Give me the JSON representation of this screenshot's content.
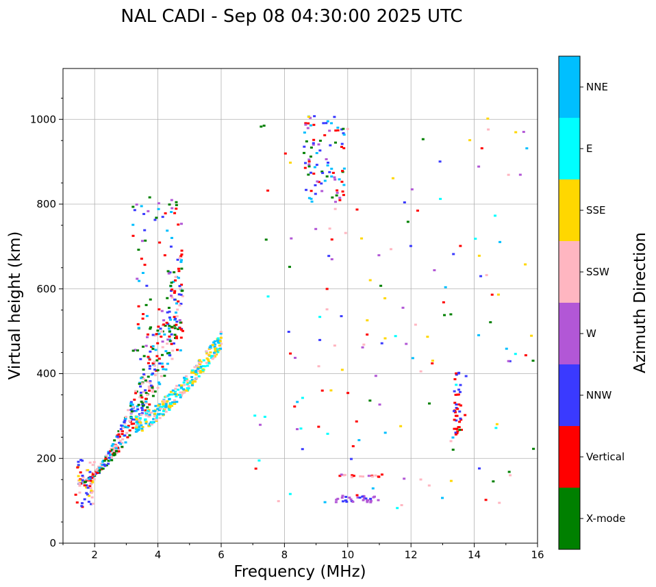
{
  "chart_data": {
    "type": "scatter",
    "title": "NAL CADI - Sep 08 04:30:00 2025 UTC",
    "xlabel": "Frequency (MHz)",
    "ylabel": "Virtual height (km)",
    "xlim": [
      1,
      16
    ],
    "ylim": [
      0,
      1120
    ],
    "xticks": [
      "2",
      "4",
      "6",
      "8",
      "10",
      "12",
      "14",
      "16"
    ],
    "yticks": [
      "0",
      "200",
      "400",
      "600",
      "800",
      "1000"
    ],
    "grid": true,
    "colorbar": {
      "label": "Azimuth Direction",
      "categories": [
        {
          "name": "X-mode",
          "color": "#008000"
        },
        {
          "name": "Vertical",
          "color": "#ff0000"
        },
        {
          "name": "NNW",
          "color": "#3a3aff"
        },
        {
          "name": "W",
          "color": "#b257d6"
        },
        {
          "name": "SSW",
          "color": "#ffb6c1"
        },
        {
          "name": "SSE",
          "color": "#ffd700"
        },
        {
          "name": "E",
          "color": "#00ffff"
        },
        {
          "name": "NNE",
          "color": "#00bfff"
        }
      ]
    },
    "clusters": [
      {
        "name": "F-layer low-frequency trace O-mode",
        "azimuths": [
          "Vertical",
          "NNW",
          "NNE",
          "SSW",
          "X-mode"
        ],
        "x": [
          1.5,
          4.8
        ],
        "y": [
          140,
          720
        ],
        "n": 420
      },
      {
        "name": "F-layer trace SSW/SSE branch",
        "azimuths": [
          "SSW",
          "SSE",
          "NNE",
          "E"
        ],
        "x": [
          3.3,
          6.0
        ],
        "y": [
          280,
          480
        ],
        "n": 300
      },
      {
        "name": "Low-frequency E echoes",
        "azimuths": [
          "Vertical",
          "NNW",
          "SSE",
          "SSW"
        ],
        "x": [
          1.4,
          2.0
        ],
        "y": [
          85,
          200
        ],
        "n": 55
      },
      {
        "name": "Upper F multiple echoes",
        "azimuths": [
          "Vertical",
          "X-mode",
          "NNW",
          "NNE",
          "W"
        ],
        "x": [
          3.2,
          4.8
        ],
        "y": [
          430,
          820
        ],
        "n": 90
      },
      {
        "name": "High-altitude 9 MHz cluster",
        "azimuths": [
          "X-mode",
          "Vertical",
          "NNW",
          "W",
          "NNE"
        ],
        "x": [
          8.6,
          9.9
        ],
        "y": [
          800,
          1010
        ],
        "n": 90
      },
      {
        "name": "Es layer 10-11 MHz",
        "azimuths": [
          "NNW",
          "W"
        ],
        "x": [
          9.6,
          11.0
        ],
        "y": [
          95,
          112
        ],
        "n": 30
      },
      {
        "name": "Es layer 10-11 MHz upper",
        "azimuths": [
          "SSW",
          "Vertical",
          "W"
        ],
        "x": [
          9.7,
          11.1
        ],
        "y": [
          155,
          162
        ],
        "n": 18
      },
      {
        "name": "13.5 MHz vertical stack",
        "azimuths": [
          "Vertical",
          "NNW"
        ],
        "x": [
          13.35,
          13.6
        ],
        "y": [
          255,
          410
        ],
        "n": 40
      },
      {
        "name": "Scattered mid-band echoes",
        "azimuths": [
          "SSE",
          "W",
          "SSW",
          "NNW",
          "E",
          "NNE",
          "Vertical",
          "X-mode"
        ],
        "x": [
          7.0,
          16.0
        ],
        "y": [
          80,
          1010
        ],
        "n": 150
      }
    ]
  }
}
